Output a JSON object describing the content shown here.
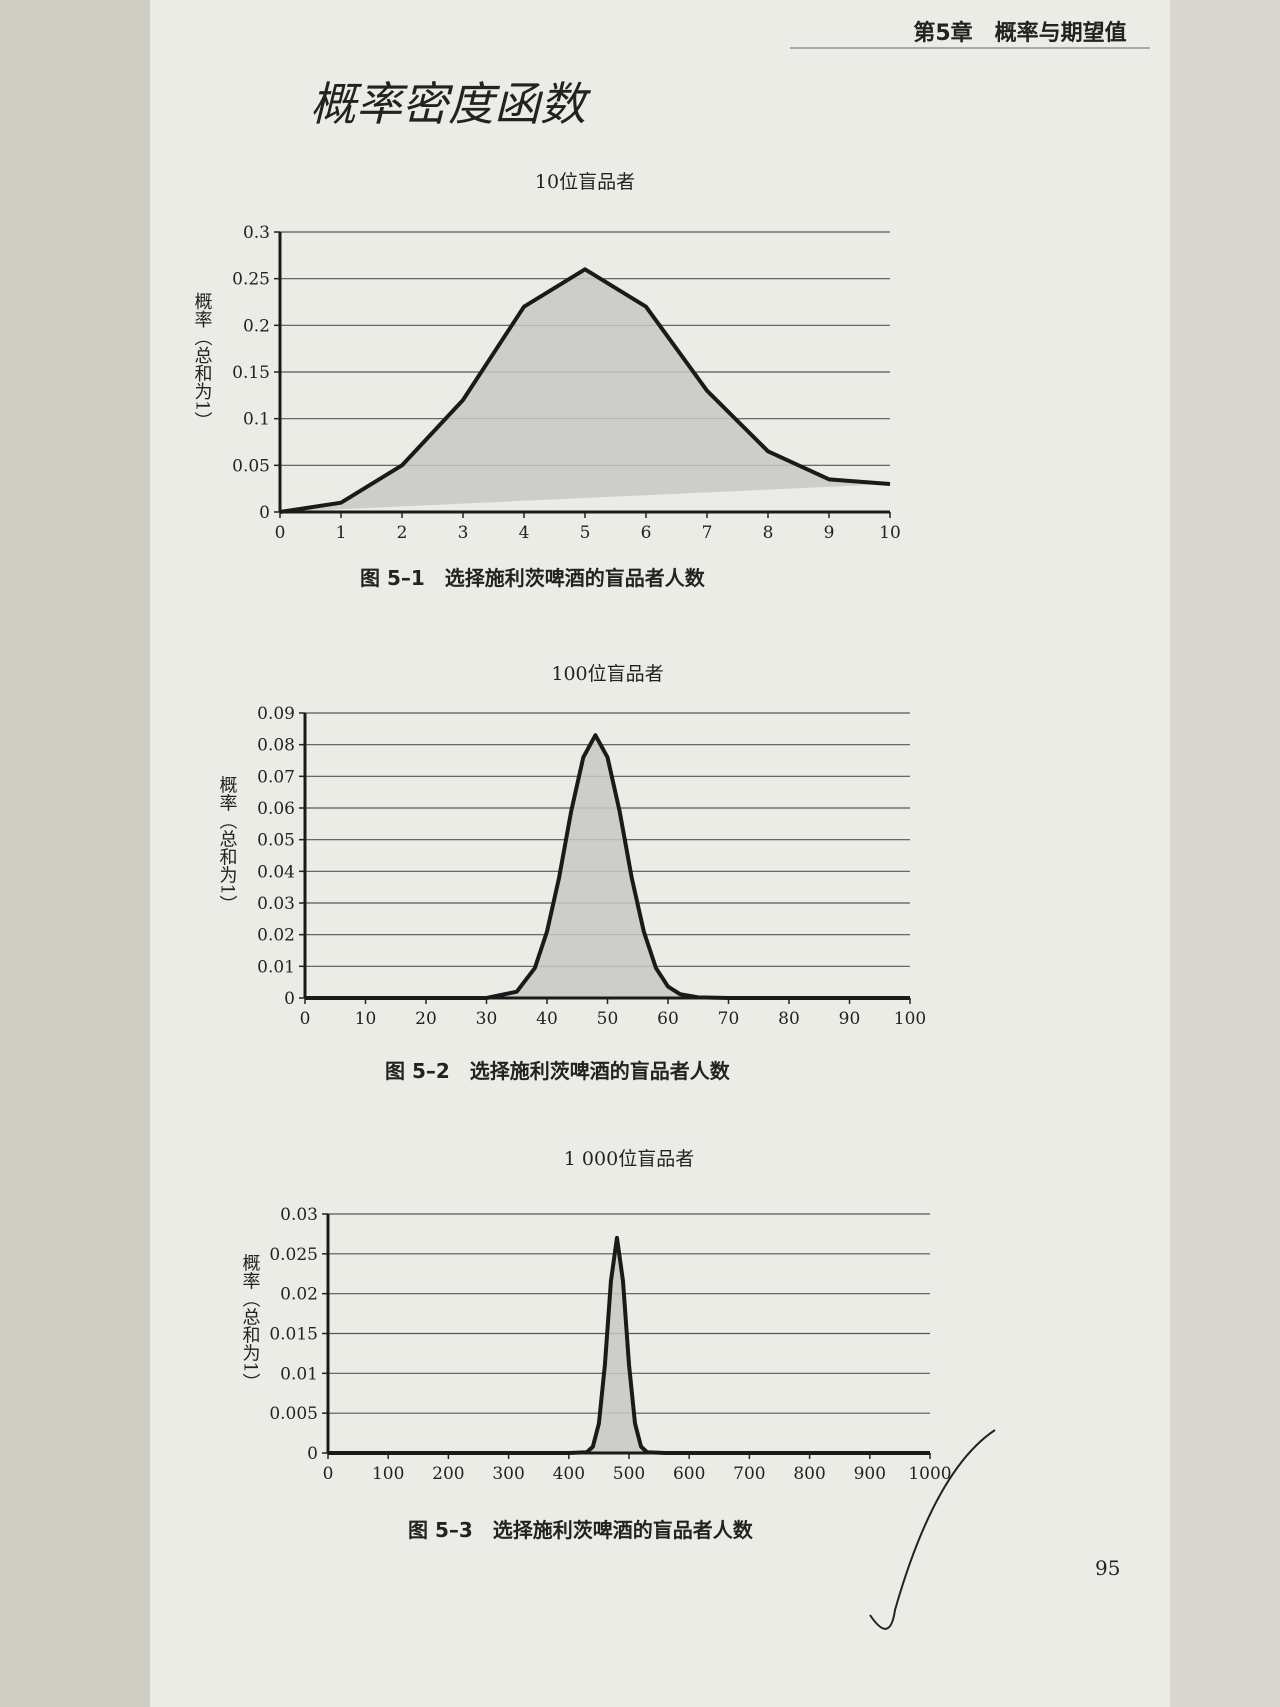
{
  "page": {
    "header": "第5章　概率与期望值",
    "handwriting": "概率密度函数",
    "page_number": "95"
  },
  "chart_data": [
    {
      "type": "area",
      "title": "10位盲品者",
      "ylabel": "概率（总和为1）",
      "caption": "图 5–1　选择施利茨啤酒的盲品者人数",
      "x": [
        0,
        1,
        2,
        3,
        4,
        5,
        6,
        7,
        8,
        9,
        10
      ],
      "values": [
        0,
        0.01,
        0.05,
        0.12,
        0.22,
        0.26,
        0.22,
        0.13,
        0.065,
        0.035,
        0.03
      ],
      "xlim": [
        0,
        10
      ],
      "xticks": [
        0,
        1,
        2,
        3,
        4,
        5,
        6,
        7,
        8,
        9,
        10
      ],
      "ylim": [
        0,
        0.3
      ],
      "yticks": [
        0,
        0.05,
        0.1,
        0.15,
        0.2,
        0.25,
        0.3
      ],
      "color": "#c8c8c4",
      "grid": true
    },
    {
      "type": "area",
      "title": "100位盲品者",
      "ylabel": "概率（总和为1）",
      "caption": "图 5–2　选择施利茨啤酒的盲品者人数",
      "x": [
        0,
        30,
        35,
        38,
        40,
        42,
        44,
        46,
        48,
        50,
        52,
        54,
        56,
        58,
        60,
        62,
        65,
        70,
        80,
        90,
        100
      ],
      "values": [
        0,
        0,
        0.002,
        0.0095,
        0.021,
        0.038,
        0.059,
        0.076,
        0.083,
        0.076,
        0.059,
        0.038,
        0.021,
        0.0095,
        0.0036,
        0.0012,
        0.0002,
        0,
        0,
        0,
        0
      ],
      "xlim": [
        0,
        100
      ],
      "xticks": [
        0,
        10,
        20,
        30,
        40,
        50,
        60,
        70,
        80,
        90,
        100
      ],
      "ylim": [
        0,
        0.09
      ],
      "yticks": [
        0,
        0.01,
        0.02,
        0.03,
        0.04,
        0.05,
        0.06,
        0.07,
        0.08,
        0.09
      ],
      "color": "#c8c8c4",
      "grid": true
    },
    {
      "type": "area",
      "title": "1 000位盲品者",
      "ylabel": "概率（总和为1）",
      "caption": "图 5–3　选择施利茨啤酒的盲品者人数",
      "x": [
        0,
        400,
        430,
        440,
        450,
        460,
        470,
        480,
        490,
        500,
        510,
        520,
        530,
        560,
        1000
      ],
      "values": [
        0,
        0,
        0.0001,
        0.0008,
        0.0037,
        0.0111,
        0.0216,
        0.027,
        0.0216,
        0.0111,
        0.0037,
        0.0008,
        0.0001,
        0,
        0
      ],
      "xlim": [
        0,
        1000
      ],
      "xticks": [
        0,
        100,
        200,
        300,
        400,
        500,
        600,
        700,
        800,
        900,
        1000
      ],
      "ylim": [
        0,
        0.03
      ],
      "yticks": [
        0,
        0.005,
        0.01,
        0.015,
        0.02,
        0.025,
        0.03
      ],
      "color": "#c8c8c4",
      "grid": true
    }
  ]
}
